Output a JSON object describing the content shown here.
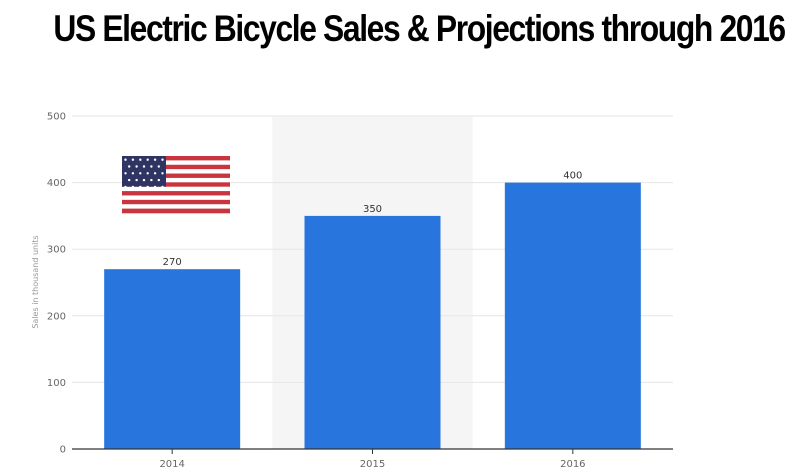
{
  "chart_data": {
    "type": "bar",
    "title": "US Electric Bicycle Sales & Projections through 2016",
    "ylabel": "Sales in thousand units",
    "xlabel": "",
    "categories": [
      "2014",
      "2015",
      "2016"
    ],
    "values": [
      270,
      350,
      400
    ],
    "ylim": [
      0,
      500
    ],
    "yticks": [
      0,
      100,
      200,
      300,
      400,
      500
    ],
    "grid": true,
    "bar_color": "#2875de",
    "projection_highlight_category": "2015",
    "decoration": "us-flag-icon"
  }
}
